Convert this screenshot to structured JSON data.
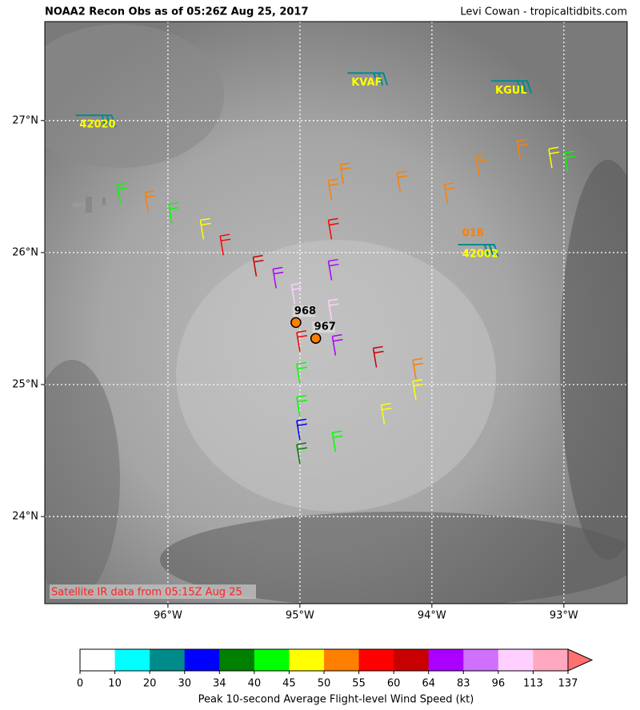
{
  "header": {
    "title": "NOAA2 Recon Obs as of 05:26Z Aug 25, 2017",
    "credit": "Levi Cowan - tropicaltidbits.com"
  },
  "map": {
    "lonlim": [
      -96.933,
      -92.52
    ],
    "latlim": [
      23.34,
      27.75
    ],
    "lonticks": [
      {
        "value": -96,
        "label": "96°W"
      },
      {
        "value": -95,
        "label": "95°W"
      },
      {
        "value": -94,
        "label": "94°W"
      },
      {
        "value": -93,
        "label": "93°W"
      }
    ],
    "latticks": [
      {
        "value": 24,
        "label": "24°N"
      },
      {
        "value": 25,
        "label": "25°N"
      },
      {
        "value": 26,
        "label": "26°N"
      },
      {
        "value": 27,
        "label": "27°N"
      }
    ],
    "note": "Satellite IR data from 05:15Z Aug 25",
    "stations": [
      {
        "name": "KVAF",
        "lon": -94.61,
        "lat": 27.36
      },
      {
        "name": "KGUL",
        "lon": -93.52,
        "lat": 27.3
      },
      {
        "name": "42020",
        "lon": -96.67,
        "lat": 27.04
      },
      {
        "name": "42002",
        "lon": -93.77,
        "lat": 26.06,
        "value": "018"
      }
    ],
    "centers": [
      {
        "label": "968",
        "lon": -95.03,
        "lat": 25.47
      },
      {
        "label": "967",
        "lon": -94.88,
        "lat": 25.35
      }
    ],
    "track": [
      {
        "lon": -96.36,
        "lat": 26.37,
        "wind": 42
      },
      {
        "lon": -96.15,
        "lat": 26.31,
        "wind": 52
      },
      {
        "lon": -95.97,
        "lat": 26.22,
        "wind": 43
      },
      {
        "lon": -95.73,
        "lat": 26.1,
        "wind": 47
      },
      {
        "lon": -95.58,
        "lat": 25.98,
        "wind": 57
      },
      {
        "lon": -95.33,
        "lat": 25.82,
        "wind": 62
      },
      {
        "lon": -95.18,
        "lat": 25.73,
        "wind": 70
      },
      {
        "lon": -95.04,
        "lat": 25.61,
        "wind": 100
      },
      {
        "lon": -95.0,
        "lat": 25.25,
        "wind": 57
      },
      {
        "lon": -95.0,
        "lat": 25.01,
        "wind": 43
      },
      {
        "lon": -95.0,
        "lat": 24.76,
        "wind": 42
      },
      {
        "lon": -95.0,
        "lat": 24.58,
        "wind": 32
      },
      {
        "lon": -95.0,
        "lat": 24.4,
        "wind": 36
      },
      {
        "lon": -94.73,
        "lat": 24.49,
        "wind": 42
      },
      {
        "lon": -94.36,
        "lat": 24.7,
        "wind": 47
      },
      {
        "lon": -94.12,
        "lat": 24.88,
        "wind": 47
      },
      {
        "lon": -94.12,
        "lat": 25.04,
        "wind": 52
      },
      {
        "lon": -94.42,
        "lat": 25.13,
        "wind": 62
      },
      {
        "lon": -94.73,
        "lat": 25.22,
        "wind": 70
      },
      {
        "lon": -94.76,
        "lat": 25.49,
        "wind": 100
      },
      {
        "lon": -94.76,
        "lat": 25.79,
        "wind": 75
      },
      {
        "lon": -94.76,
        "lat": 26.1,
        "wind": 57
      },
      {
        "lon": -94.76,
        "lat": 26.4,
        "wind": 52
      },
      {
        "lon": -94.67,
        "lat": 26.52,
        "wind": 52
      },
      {
        "lon": -94.24,
        "lat": 26.46,
        "wind": 52
      },
      {
        "lon": -93.88,
        "lat": 26.37,
        "wind": 52
      },
      {
        "lon": -93.64,
        "lat": 26.58,
        "wind": 52
      },
      {
        "lon": -93.33,
        "lat": 26.7,
        "wind": 52
      },
      {
        "lon": -93.09,
        "lat": 26.64,
        "wind": 47
      },
      {
        "lon": -92.97,
        "lat": 26.61,
        "wind": 42
      }
    ]
  },
  "colorbar": {
    "label": "Peak 10-second Average Flight-level Wind Speed (kt)",
    "ticks": [
      0,
      10,
      20,
      30,
      34,
      40,
      45,
      50,
      55,
      60,
      64,
      83,
      96,
      113,
      137
    ],
    "colors": [
      "#ffffff",
      "#00ffff",
      "#008b8b",
      "#0000ff",
      "#008000",
      "#00ff00",
      "#ffff00",
      "#ff7f00",
      "#ff0000",
      "#c80000",
      "#aa00ff",
      "#d070ff",
      "#ffd0ff",
      "#ffa8c0"
    ],
    "extend_color": "#ff7070"
  }
}
